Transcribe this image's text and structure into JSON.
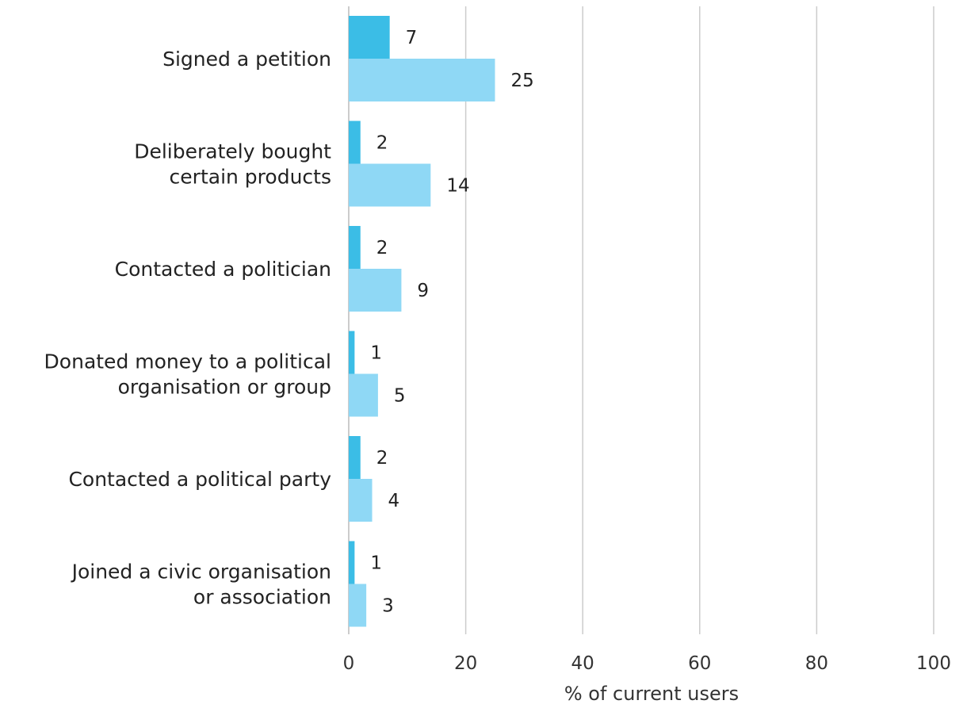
{
  "chart_data": {
    "type": "bar",
    "orientation": "horizontal",
    "title": "",
    "xlabel": "% of current users",
    "ylabel": "",
    "xlim": [
      0,
      100
    ],
    "xticks": [
      0,
      20,
      40,
      60,
      80,
      100
    ],
    "grid": "vertical",
    "legend": "none",
    "categories": [
      [
        "Signed a petition"
      ],
      [
        "Deliberately bought",
        "certain products"
      ],
      [
        "Contacted a politician"
      ],
      [
        "Donated money to a political",
        "organisation or group"
      ],
      [
        "Contacted a political party"
      ],
      [
        "Joined a civic organisation",
        "or association"
      ]
    ],
    "series": [
      {
        "values": [
          7,
          2,
          2,
          1,
          2,
          1
        ],
        "color": "#3bbde6"
      },
      {
        "values": [
          25,
          14,
          9,
          5,
          4,
          3
        ],
        "color": "#8fd8f5"
      }
    ],
    "gridline_color": "#cccccc"
  }
}
